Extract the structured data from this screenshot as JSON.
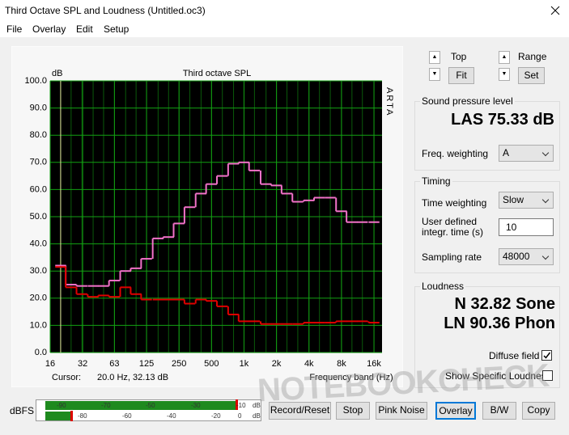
{
  "window": {
    "title": "Third Octave SPL and Loudness (Untitled.oc3)"
  },
  "menu": [
    "File",
    "Overlay",
    "Edit",
    "Setup"
  ],
  "chart_data": {
    "type": "step",
    "title": "Third octave SPL",
    "y_label": "dB",
    "x_label": "Frequency band (Hz)",
    "side_label": "ARTA",
    "cursor_label": "Cursor:",
    "cursor": "20.0 Hz, 32.13 dB",
    "log_x": true,
    "grid": true,
    "x": [
      20,
      25,
      31.5,
      40,
      50,
      63,
      80,
      100,
      125,
      160,
      200,
      250,
      315,
      400,
      500,
      630,
      800,
      1000,
      1250,
      1600,
      2000,
      2500,
      3150,
      4000,
      5000,
      6300,
      8000,
      10000,
      12500,
      16000
    ],
    "xlim": [
      16,
      19000
    ],
    "xticks": [
      16,
      32,
      63,
      125,
      250,
      500,
      {
        "value": 1000,
        "label": "1k"
      },
      {
        "value": 2000,
        "label": "2k"
      },
      {
        "value": 4000,
        "label": "4k"
      },
      {
        "value": 8000,
        "label": "8k"
      },
      {
        "value": 16000,
        "label": "16k"
      }
    ],
    "ylim": [
      0,
      100
    ],
    "yticks": [
      {
        "value": 0,
        "label": "0.0"
      },
      {
        "value": 10,
        "label": "10.0"
      },
      {
        "value": 20,
        "label": "20.0"
      },
      {
        "value": 30,
        "label": "30.0"
      },
      {
        "value": 40,
        "label": "40.0"
      },
      {
        "value": 50,
        "label": "50.0"
      },
      {
        "value": 60,
        "label": "60.0"
      },
      {
        "value": 70,
        "label": "70.0"
      },
      {
        "value": 80,
        "label": "80.0"
      },
      {
        "value": 90,
        "label": "90.0"
      },
      {
        "value": 100,
        "label": "100.0"
      }
    ],
    "series": [
      {
        "color": "#f272c8",
        "values": [
          32,
          25,
          24.5,
          24.5,
          24.5,
          26.5,
          30,
          31,
          34.5,
          42,
          42.5,
          47.5,
          53.5,
          58.5,
          62,
          65,
          69.5,
          70,
          67,
          62,
          61.5,
          58.5,
          55.5,
          56,
          57,
          57,
          52,
          48,
          48,
          48
        ]
      },
      {
        "color": "#e00000",
        "values": [
          31.5,
          24,
          21.5,
          20.5,
          21,
          20.5,
          24,
          21.5,
          19.5,
          19.5,
          19.5,
          19.5,
          18,
          19.5,
          19,
          17,
          14,
          11.5,
          11.5,
          10.5,
          10.5,
          10.5,
          10.5,
          11,
          11,
          11,
          11.5,
          11.5,
          11.5,
          11
        ]
      }
    ]
  },
  "controls": {
    "top": "Top",
    "fit": "Fit",
    "range": "Range",
    "set": "Set"
  },
  "spl": {
    "title": "Sound pressure level",
    "reading": "LAS 75.33 dB",
    "freq_weighting_label": "Freq. weighting",
    "freq_weighting": "A"
  },
  "timing": {
    "title": "Timing",
    "time_weighting_label": "Time weighting",
    "time_weighting": "Slow",
    "integr_label_1": "User defined",
    "integr_label_2": "integr. time (s)",
    "integr_time": "10",
    "sampling_rate_label": "Sampling rate",
    "sampling_rate": "48000"
  },
  "loudness": {
    "title": "Loudness",
    "n": "N 32.82 Sone",
    "ln": "LN 90.36 Phon",
    "diffuse_field": "Diffuse field",
    "diffuse_field_checked": true,
    "show_specific": "Show Specific Loudness",
    "show_specific_checked": false
  },
  "meter": {
    "label": "dBFS",
    "left_channel": "L",
    "left_scale": [
      "-90",
      "-70",
      "-50",
      "-30",
      "-10",
      "dB"
    ],
    "right_channel": "R",
    "right_scale": [
      "-80",
      "-60",
      "-40",
      "-20",
      "0",
      "dB"
    ]
  },
  "buttons": [
    "Record/Reset",
    "Stop",
    "Pink Noise",
    "Overlay",
    "B/W",
    "Copy"
  ],
  "watermark": "NOTEBOOKCHECK"
}
